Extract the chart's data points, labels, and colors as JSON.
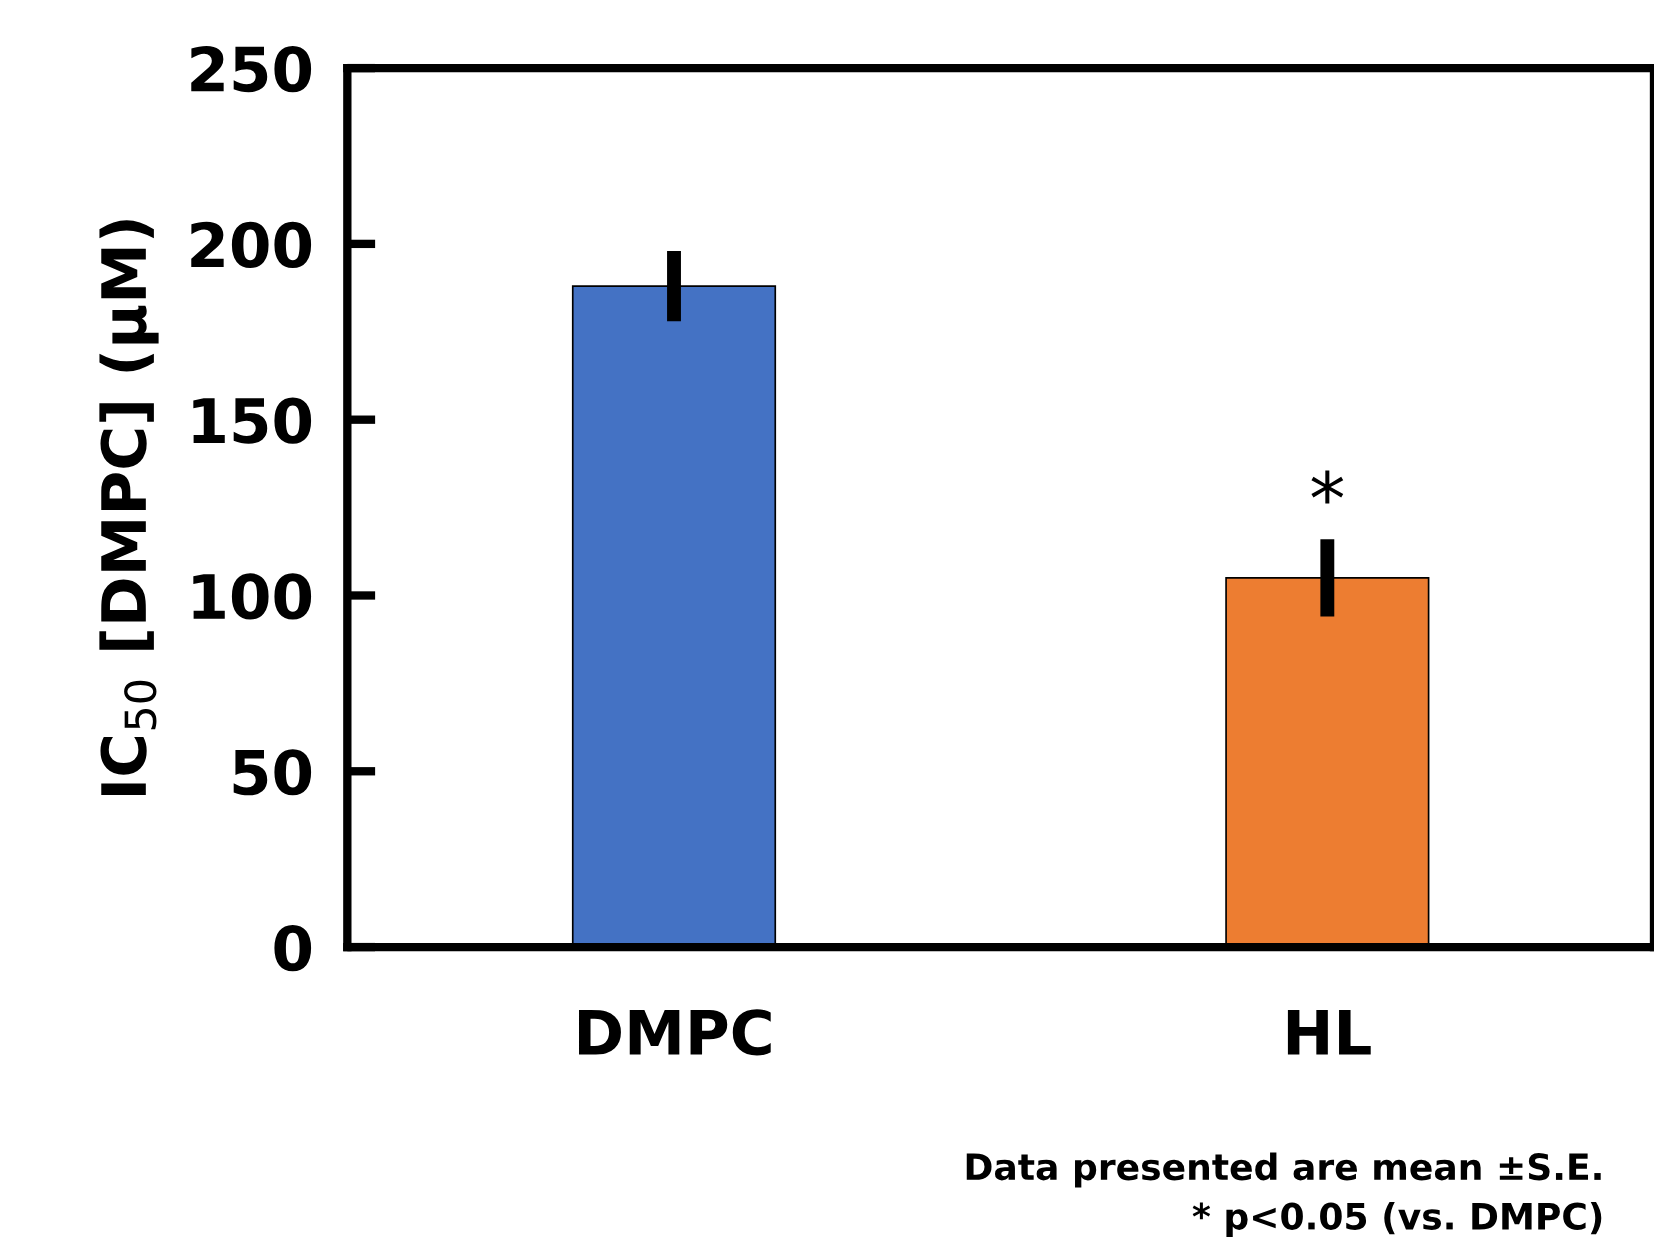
{
  "chart_data": {
    "type": "bar",
    "ylabel": "IC$_{50}$ [DMPC] (μM)",
    "categories": [
      "DMPC",
      "HL"
    ],
    "values": [
      188,
      105
    ],
    "errors": [
      10,
      11
    ],
    "colors": [
      "#4472c4",
      "#ed7d31"
    ],
    "ylim": [
      0,
      250
    ],
    "yticks": [
      0,
      50,
      100,
      150,
      200,
      250
    ],
    "grid": false,
    "annotations": [
      {
        "text": "*",
        "x": "HL",
        "y": 116
      },
      "Data presented are mean ±S.E.",
      "* p<0.05 (vs. DMPC)"
    ]
  }
}
